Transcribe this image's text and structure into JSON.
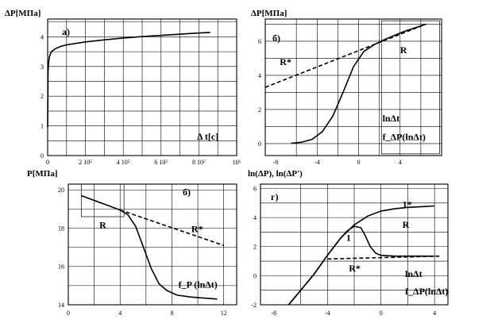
{
  "chart_data": [
    {
      "id": "a",
      "type": "line",
      "title": "ΔP[МПа]",
      "panel_label": "a)",
      "xlabel": "Δ t[c]",
      "x_ticks": [
        "0",
        "2 10⁵",
        "4 10⁵",
        "6 10⁵",
        "8 10⁵",
        "10⁶"
      ],
      "y_ticks": [
        "0",
        "1",
        "2",
        "3",
        "4"
      ],
      "xlim": [
        0,
        1000000
      ],
      "ylim": [
        0,
        4.6
      ],
      "grid": true,
      "series": [
        {
          "style": "solid",
          "x": [
            0,
            2000,
            5000,
            10000,
            20000,
            40000,
            70000,
            100000,
            200000,
            300000,
            400000,
            500000,
            600000,
            700000,
            800000,
            860000
          ],
          "y": [
            0.95,
            2.8,
            3.15,
            3.35,
            3.5,
            3.6,
            3.68,
            3.73,
            3.83,
            3.9,
            3.96,
            4.01,
            4.05,
            4.09,
            4.13,
            4.15
          ]
        }
      ]
    },
    {
      "id": "b",
      "type": "line",
      "title": "ΔP[МПа]",
      "panel_label": "б)",
      "x_ticks": [
        "-8",
        "-4",
        "0",
        "4"
      ],
      "y_ticks": [
        "0",
        "2",
        "4",
        "6"
      ],
      "xlim": [
        -9,
        8
      ],
      "ylim": [
        -0.7,
        7.3
      ],
      "grid": true,
      "annotations": [
        "R*",
        "R",
        "lnΔt",
        "f_ΔP(lnΔt)"
      ],
      "series": [
        {
          "name": "f_ΔP(lnΔt)",
          "style": "solid",
          "x": [
            -6.5,
            -5.5,
            -4.5,
            -3.5,
            -2.5,
            -1.5,
            -0.5,
            0.5,
            1.5,
            2.5,
            3.5,
            4.5,
            5.5,
            6.5
          ],
          "y": [
            0.02,
            0.08,
            0.25,
            0.7,
            1.6,
            3.0,
            4.5,
            5.4,
            5.8,
            6.1,
            6.35,
            6.6,
            6.8,
            7.0
          ]
        },
        {
          "name": "R*",
          "style": "dashed",
          "x": [
            -9,
            6.5
          ],
          "y": [
            3.3,
            7.0
          ]
        }
      ]
    },
    {
      "id": "c",
      "type": "line",
      "title": "P[МПа]",
      "panel_label": "б)",
      "x_ticks": [
        "0",
        "4",
        "8",
        "12"
      ],
      "y_ticks": [
        "14",
        "16",
        "18",
        "20"
      ],
      "xlim": [
        0,
        13
      ],
      "ylim": [
        14,
        20.3
      ],
      "grid": true,
      "annotations": [
        "R",
        "R*",
        "f_P (lnΔt)"
      ],
      "series": [
        {
          "name": "f_P (lnΔt)",
          "style": "solid",
          "x": [
            1,
            2,
            3,
            4,
            4.6,
            5.2,
            5.8,
            6.4,
            7,
            7.6,
            8.4,
            9.5,
            10.5,
            11.5
          ],
          "y": [
            19.7,
            19.45,
            19.2,
            18.95,
            18.7,
            18.1,
            17.0,
            15.9,
            15.1,
            14.75,
            14.5,
            14.4,
            14.35,
            14.3
          ]
        },
        {
          "name": "R*",
          "style": "dashed",
          "x": [
            4,
            12
          ],
          "y": [
            18.95,
            17.1
          ]
        }
      ]
    },
    {
      "id": "d",
      "type": "line",
      "title": "ln(ΔP), ln(ΔP′)",
      "panel_label": "г)",
      "x_ticks": [
        "-8",
        "-4",
        "0",
        "4"
      ],
      "y_ticks": [
        "-2",
        "0",
        "2",
        "4",
        "6"
      ],
      "xlim": [
        -9,
        5
      ],
      "ylim": [
        -2,
        6.3
      ],
      "grid": true,
      "annotations": [
        "1*",
        "R",
        "1",
        "R*",
        "lnΔt",
        "f_ΔP(lnΔt)"
      ],
      "series": [
        {
          "name": "1*",
          "style": "solid",
          "x": [
            -6.9,
            -6,
            -5,
            -4,
            -3,
            -2,
            -1,
            0,
            1,
            2,
            3,
            4
          ],
          "y": [
            -2,
            -1.0,
            0.1,
            1.4,
            2.6,
            3.5,
            4.1,
            4.45,
            4.6,
            4.7,
            4.75,
            4.8
          ]
        },
        {
          "name": "1",
          "style": "solid",
          "x": [
            -6.9,
            -5,
            -4,
            -3,
            -2.5,
            -2,
            -1.5,
            -1.2,
            -0.8,
            -0.4,
            0,
            1,
            2,
            3,
            4
          ],
          "y": [
            -2,
            0.1,
            1.4,
            2.6,
            3.1,
            3.4,
            3.3,
            2.8,
            2.0,
            1.55,
            1.4,
            1.35,
            1.35,
            1.35,
            1.35
          ]
        },
        {
          "name": "R*",
          "style": "dashed",
          "x": [
            -4,
            4.4
          ],
          "y": [
            1.15,
            1.35
          ]
        }
      ]
    }
  ]
}
